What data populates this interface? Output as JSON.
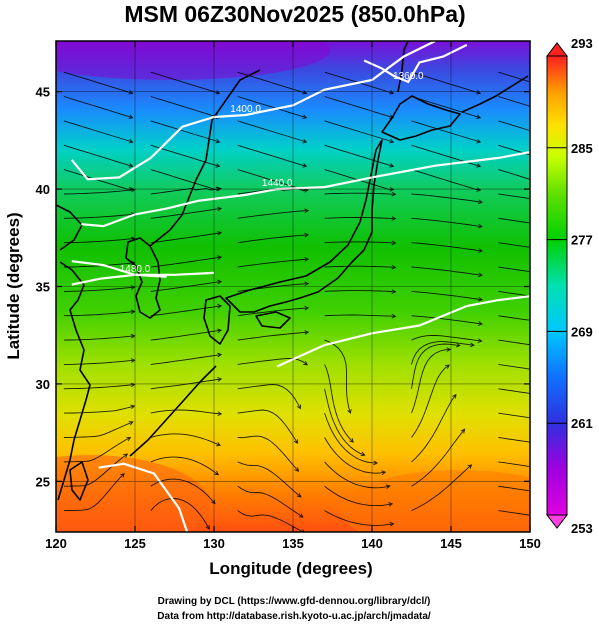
{
  "title": "MSM 06Z30Nov2025 (850.0hPa)",
  "xlabel": "Longitude (degrees)",
  "ylabel": "Latitude  (degrees)",
  "credits": [
    "Drawing by DCL (https://www.gfd-dennou.org/library/dcl/)",
    "Data from http://database.rish.kyoto-u.ac.jp/arch/jmadata/"
  ],
  "colors": {
    "contour": "#ffffff",
    "coast": "#000000",
    "stream": "#000000",
    "colorbar": [
      "#e000e0",
      "#a000e0",
      "#3030e0",
      "#1070ff",
      "#00c8ff",
      "#00e0b0",
      "#00d000",
      "#60e000",
      "#c8ff00",
      "#ffe000",
      "#ffa000",
      "#ff6000",
      "#ff2020"
    ]
  },
  "chart_data": {
    "type": "heatmap",
    "title": "MSM 06Z30Nov2025 (850.0hPa)",
    "xlabel": "Longitude (degrees)",
    "ylabel": "Latitude  (degrees)",
    "xlim": [
      120,
      150
    ],
    "ylim": [
      22.4,
      47.6
    ],
    "x_ticks": [
      120,
      125,
      130,
      135,
      140,
      145,
      150
    ],
    "y_ticks": [
      25,
      30,
      35,
      40,
      45
    ],
    "grid": true,
    "colorbar": {
      "range": [
        253,
        293
      ],
      "ticks": [
        253,
        261,
        269,
        277,
        285,
        293
      ]
    },
    "contours": [
      {
        "label": "1400.0",
        "points": [
          [
            121,
            41.5
          ],
          [
            122,
            40.5
          ],
          [
            124,
            40.6
          ],
          [
            126,
            41.6
          ],
          [
            128,
            43.2
          ],
          [
            130,
            43.7
          ],
          [
            132,
            43.8
          ],
          [
            135,
            44.3
          ],
          [
            137,
            45.1
          ],
          [
            140,
            45.6
          ],
          [
            142,
            46.8
          ],
          [
            144,
            47.6
          ]
        ]
      },
      {
        "label": "1360.0",
        "points": [
          [
            139.5,
            46.6
          ],
          [
            140.6,
            46.2
          ],
          [
            141.4,
            45.8
          ],
          [
            142.3,
            45.5
          ],
          [
            143,
            46.5
          ],
          [
            144.5,
            46.8
          ],
          [
            146,
            47.4
          ]
        ]
      },
      {
        "label": "1440.0",
        "points": [
          [
            121.6,
            38.2
          ],
          [
            123,
            38.1
          ],
          [
            125,
            38.7
          ],
          [
            127,
            39
          ],
          [
            129,
            39.4
          ],
          [
            132,
            39.7
          ],
          [
            134,
            40
          ],
          [
            137,
            40.1
          ],
          [
            140,
            40.6
          ],
          [
            144,
            41.2
          ],
          [
            148,
            41.6
          ],
          [
            150,
            41.9
          ]
        ]
      },
      {
        "label": "1480.0",
        "points": [
          [
            121,
            35.1
          ],
          [
            122.8,
            35.4
          ],
          [
            125,
            35.6
          ],
          [
            127.5,
            35.6
          ],
          [
            130,
            35.7
          ]
        ]
      },
      {
        "label": "",
        "points": [
          [
            121,
            36.3
          ],
          [
            123,
            36.1
          ],
          [
            125,
            35.6
          ],
          [
            127,
            35.5
          ]
        ]
      },
      {
        "label": "",
        "points": [
          [
            134,
            30.9
          ],
          [
            137,
            32
          ],
          [
            140,
            32.6
          ],
          [
            143,
            33
          ],
          [
            146,
            34
          ],
          [
            148,
            34.3
          ],
          [
            150,
            34.5
          ]
        ]
      },
      {
        "label": "",
        "points": [
          [
            122.7,
            25.7
          ],
          [
            124.3,
            25.9
          ],
          [
            126.2,
            25.4
          ],
          [
            127.8,
            23.6
          ],
          [
            128.3,
            22.4
          ]
        ]
      }
    ],
    "temperature_field": "850 hPa temperature shaded 253-293 K",
    "streamlines": "850 hPa wind streamlines"
  }
}
